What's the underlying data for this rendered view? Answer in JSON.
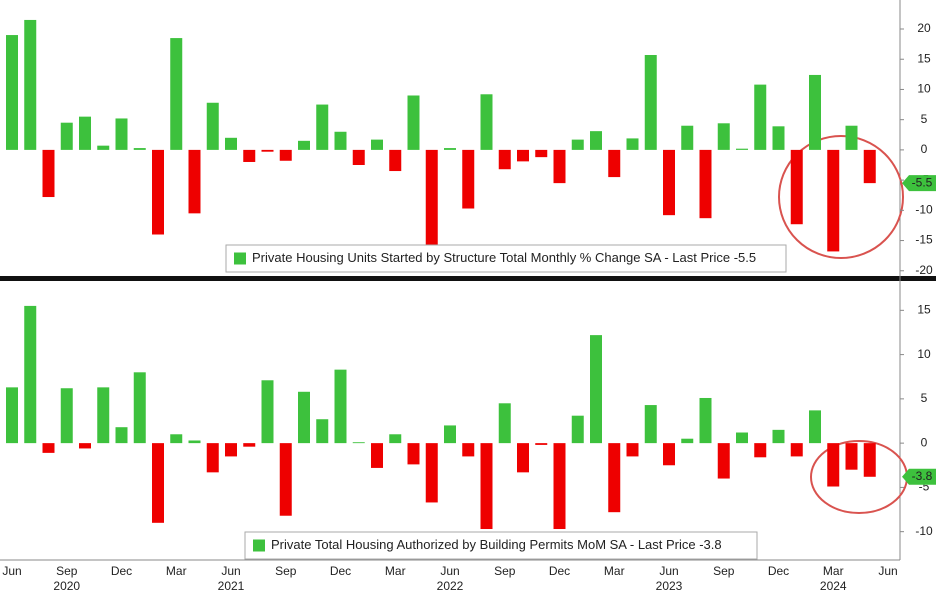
{
  "chart_data": [
    {
      "type": "bar",
      "series": [
        {
          "name": "Private Housing Units Started by Structure Total Monthly % Change SA - Last Price -5.5",
          "color_positive": "#3dc13d",
          "color_negative": "#ee0000",
          "values": [
            19,
            21.5,
            -7.8,
            4.5,
            5.5,
            0.7,
            5.2,
            0.3,
            -14,
            18.5,
            -10.5,
            7.8,
            2,
            -2,
            -0.3,
            -1.8,
            1.5,
            7.5,
            3,
            -2.5,
            1.7,
            -3.5,
            9,
            -16,
            0.3,
            -9.7,
            9.2,
            -3.2,
            -1.9,
            -1.2,
            -5.5,
            1.7,
            3.1,
            -4.5,
            1.9,
            15.7,
            -10.8,
            4,
            -11.3,
            4.4,
            0.2,
            10.8,
            3.9,
            -12.3,
            12.4,
            -16.8,
            4,
            -5.5,
            null
          ]
        }
      ],
      "ylim": [
        -20.7,
        24.8
      ],
      "yticks": [
        -20,
        -15,
        -10,
        -5,
        0,
        5,
        10,
        15,
        20
      ],
      "last_price": -5.5
    },
    {
      "type": "bar",
      "series": [
        {
          "name": "Private Total Housing Authorized by Building Permits MoM SA - Last Price -3.8",
          "color_positive": "#3dc13d",
          "color_negative": "#ee0000",
          "values": [
            6.3,
            15.5,
            -1.1,
            6.2,
            -0.6,
            6.3,
            1.8,
            8,
            -9,
            1,
            0.3,
            -3.3,
            -1.5,
            -0.4,
            7.1,
            -8.2,
            5.8,
            2.7,
            8.3,
            0.1,
            -2.8,
            1,
            -2.4,
            -6.7,
            2,
            -1.5,
            -9.7,
            4.5,
            -3.3,
            -0.2,
            -9.7,
            3.1,
            12.2,
            -7.8,
            -1.5,
            4.3,
            -2.5,
            0.5,
            5.1,
            -4,
            1.2,
            -1.6,
            1.5,
            -1.5,
            3.7,
            -4.9,
            -3,
            -3.8,
            null
          ]
        }
      ],
      "ylim": [
        -13.2,
        18.2
      ],
      "yticks": [
        -10,
        -5,
        0,
        5,
        10,
        15
      ],
      "last_price": -3.8,
      "categories": [
        "Jun",
        null,
        null,
        "Sep",
        null,
        null,
        "Dec",
        null,
        null,
        "Mar",
        null,
        null,
        "Jun",
        null,
        null,
        "Sep",
        null,
        null,
        "Dec",
        null,
        null,
        "Mar",
        null,
        null,
        "Jun",
        null,
        null,
        "Sep",
        null,
        null,
        "Dec",
        null,
        null,
        "Mar",
        null,
        null,
        "Jun",
        null,
        null,
        "Sep",
        null,
        null,
        "Dec",
        null,
        null,
        "Mar",
        null,
        null,
        "Jun"
      ],
      "category_years": [
        null,
        null,
        null,
        "2020",
        null,
        null,
        null,
        null,
        null,
        null,
        null,
        null,
        "2021",
        null,
        null,
        null,
        null,
        null,
        null,
        null,
        null,
        null,
        null,
        null,
        "2022",
        null,
        null,
        null,
        null,
        null,
        null,
        null,
        null,
        null,
        null,
        null,
        "2023",
        null,
        null,
        null,
        null,
        null,
        null,
        null,
        null,
        "2024",
        null,
        null,
        null
      ]
    }
  ]
}
